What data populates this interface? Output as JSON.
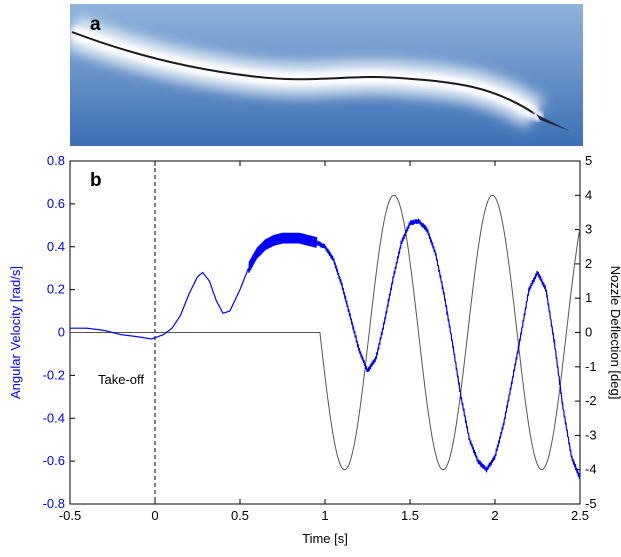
{
  "photo": {
    "label": "a",
    "colors": {
      "sky_top": "#8fb4dc",
      "sky_bottom": "#3d6fb5",
      "smoke": "#ffffff",
      "trajectory": "#1a1a1a"
    }
  },
  "chart_data": {
    "type": "line",
    "panel_label": "b",
    "xlabel": "Time [s]",
    "ylabel_left": "Angular Velocity [rad/s]",
    "ylabel_right": "Nozzle Deflection [deg]",
    "xlim": [
      -0.5,
      2.5
    ],
    "ylim_left": [
      -0.8,
      0.8
    ],
    "ylim_right": [
      -5,
      5
    ],
    "xticks": [
      "-0.5",
      "0",
      "0.5",
      "1",
      "1.5",
      "2",
      "2.5"
    ],
    "yticks_left": [
      "-0.8",
      "-0.6",
      "-0.4",
      "-0.2",
      "0",
      "0.2",
      "0.4",
      "0.6",
      "0.8"
    ],
    "yticks_right": [
      "-5",
      "-4",
      "-3",
      "-2",
      "-1",
      "0",
      "1",
      "2",
      "3",
      "4",
      "5"
    ],
    "grid": false,
    "annotation": {
      "text": "Take-off",
      "x": 0
    },
    "colors": {
      "angular_velocity": "#0000ff",
      "nozzle": "#555555",
      "axes": "#000000"
    },
    "series": [
      {
        "axis": "left",
        "x": [
          -0.5,
          -0.4,
          -0.3,
          -0.2,
          -0.1,
          -0.02,
          0.05,
          0.1,
          0.15,
          0.2,
          0.25,
          0.28,
          0.32,
          0.36,
          0.4,
          0.44,
          0.5,
          0.55,
          0.6,
          0.65,
          0.7,
          0.75,
          0.8,
          0.85,
          0.9,
          0.95,
          1.0,
          1.05,
          1.1,
          1.15,
          1.2,
          1.25,
          1.3,
          1.35,
          1.4,
          1.45,
          1.5,
          1.55,
          1.6,
          1.65,
          1.7,
          1.75,
          1.8,
          1.85,
          1.9,
          1.95,
          2.0,
          2.05,
          2.1,
          2.15,
          2.2,
          2.25,
          2.3,
          2.35,
          2.4,
          2.45,
          2.5
        ],
        "values": [
          0.02,
          0.02,
          0.01,
          -0.01,
          -0.02,
          -0.03,
          -0.01,
          0.02,
          0.08,
          0.18,
          0.26,
          0.28,
          0.24,
          0.15,
          0.09,
          0.1,
          0.2,
          0.3,
          0.37,
          0.41,
          0.43,
          0.44,
          0.44,
          0.44,
          0.43,
          0.42,
          0.4,
          0.34,
          0.22,
          0.07,
          -0.08,
          -0.18,
          -0.12,
          0.05,
          0.25,
          0.42,
          0.51,
          0.52,
          0.48,
          0.37,
          0.18,
          -0.05,
          -0.3,
          -0.5,
          -0.6,
          -0.64,
          -0.58,
          -0.43,
          -0.23,
          -0.02,
          0.2,
          0.28,
          0.2,
          -0.05,
          -0.35,
          -0.58,
          -0.68
        ]
      },
      {
        "axis": "right",
        "function": "nozzle",
        "start": 0.97,
        "period": 0.58,
        "amplitude": 4
      }
    ]
  }
}
